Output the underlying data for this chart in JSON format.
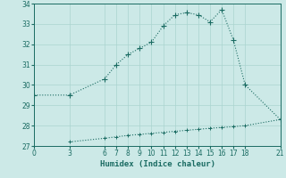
{
  "xlabel": "Humidex (Indice chaleur)",
  "ylabel": "",
  "bg_color": "#cce9e7",
  "line_color": "#1a6b62",
  "grid_color": "#aad4d0",
  "x_upper": [
    0,
    3,
    6,
    7,
    8,
    9,
    10,
    11,
    12,
    13,
    14,
    15,
    16,
    17,
    18,
    21
  ],
  "y_upper": [
    29.5,
    29.5,
    30.3,
    31.0,
    31.5,
    31.8,
    32.1,
    32.9,
    33.45,
    33.55,
    33.45,
    33.1,
    33.7,
    32.2,
    30.0,
    28.3
  ],
  "x_lower": [
    3,
    6,
    7,
    8,
    9,
    10,
    11,
    12,
    13,
    14,
    15,
    16,
    17,
    18,
    21
  ],
  "y_lower": [
    27.2,
    27.38,
    27.45,
    27.52,
    27.57,
    27.62,
    27.67,
    27.72,
    27.77,
    27.82,
    27.87,
    27.91,
    27.95,
    28.0,
    28.3
  ],
  "xlim": [
    0,
    21
  ],
  "ylim": [
    27,
    34
  ],
  "yticks": [
    27,
    28,
    29,
    30,
    31,
    32,
    33,
    34
  ],
  "xticks": [
    0,
    3,
    6,
    7,
    8,
    9,
    10,
    11,
    12,
    13,
    14,
    15,
    16,
    17,
    18,
    21
  ],
  "tick_fontsize": 5.5,
  "label_fontsize": 6.5
}
